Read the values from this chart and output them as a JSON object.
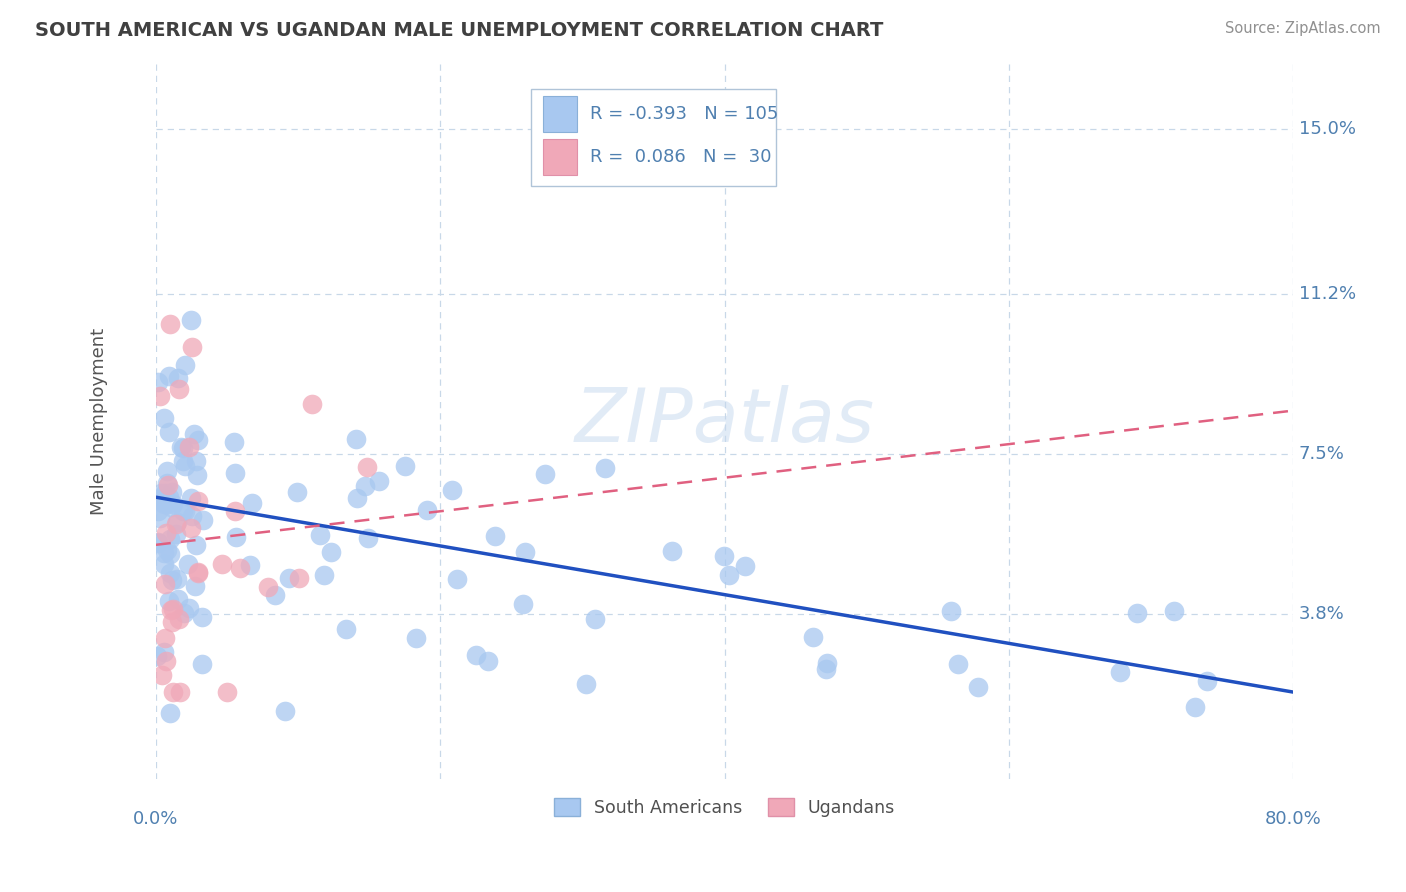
{
  "title": "SOUTH AMERICAN VS UGANDAN MALE UNEMPLOYMENT CORRELATION CHART",
  "source": "Source: ZipAtlas.com",
  "ylabel": "Male Unemployment",
  "ytick_labels": [
    "15.0%",
    "11.2%",
    "7.5%",
    "3.8%"
  ],
  "ytick_values": [
    0.15,
    0.112,
    0.075,
    0.038
  ],
  "xlim": [
    0.0,
    0.8
  ],
  "ylim": [
    0.0,
    0.165
  ],
  "south_american_R": -0.393,
  "south_american_N": 105,
  "ugandan_R": 0.086,
  "ugandan_N": 30,
  "south_american_color": "#a8c8f0",
  "ugandan_color": "#f0a8b8",
  "sa_trend_color": "#2050c0",
  "ug_trend_color": "#e06080",
  "background_color": "#ffffff",
  "grid_color": "#c8d8e8",
  "title_color": "#404040",
  "axis_label_color": "#5080b0",
  "watermark": "ZIPatlas",
  "sa_trend_x": [
    0.0,
    0.8
  ],
  "sa_trend_y": [
    0.065,
    0.02
  ],
  "ug_trend_x": [
    0.0,
    0.8
  ],
  "ug_trend_y": [
    0.054,
    0.085
  ]
}
